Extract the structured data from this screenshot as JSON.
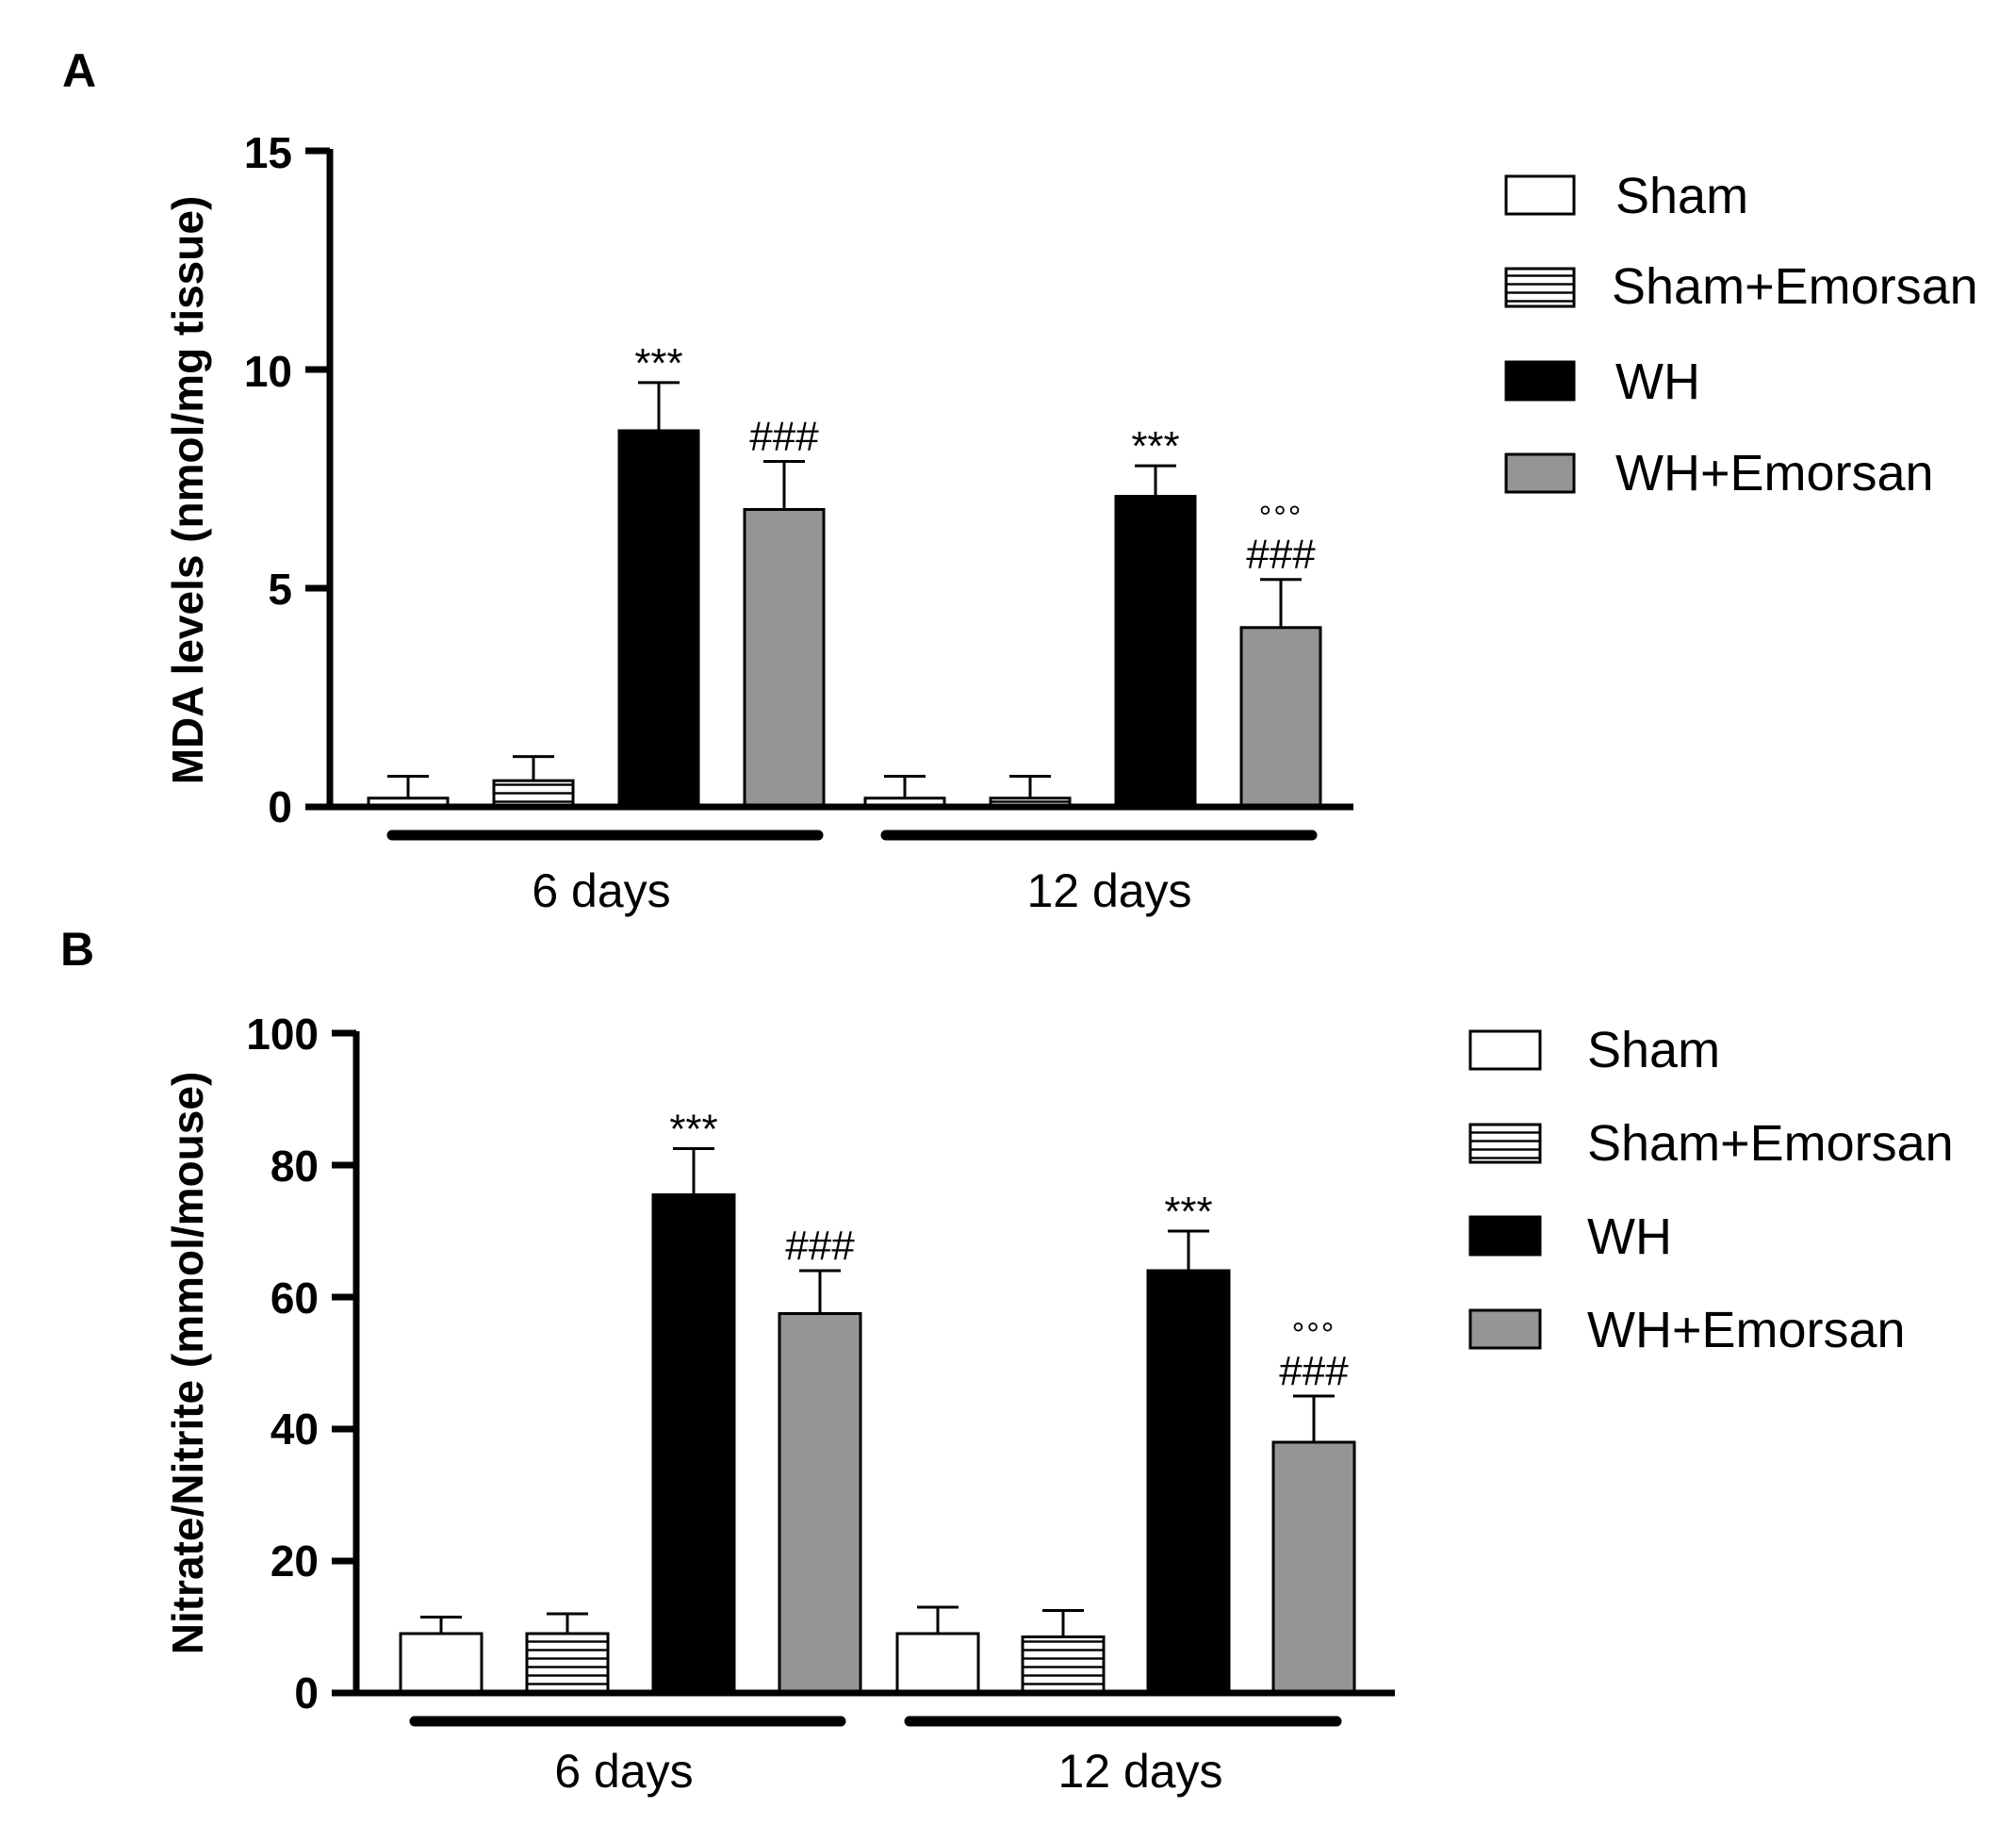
{
  "chart_data": [
    {
      "panel": "A",
      "type": "bar",
      "ylabel": "MDA levels (nmol/mg tissue)",
      "ylim": [
        0,
        15
      ],
      "yticks": [
        "0",
        "5",
        "10",
        "15"
      ],
      "groups": [
        "6 days",
        "12 days"
      ],
      "series": [
        {
          "name": "Sham",
          "fill": "#ffffff",
          "pattern": "none",
          "values": [
            0.2,
            0.2
          ],
          "errors": [
            0.5,
            0.5
          ],
          "sig_hash": [
            "",
            ""
          ],
          "sig_star": [
            "",
            ""
          ],
          "sig_ring": [
            "",
            ""
          ]
        },
        {
          "name": "Sham+Emorsan",
          "fill": "#ffffff",
          "pattern": "horizontal-stripes",
          "values": [
            0.6,
            0.2
          ],
          "errors": [
            0.55,
            0.5
          ],
          "sig_hash": [
            "",
            ""
          ],
          "sig_star": [
            "",
            ""
          ],
          "sig_ring": [
            "",
            ""
          ]
        },
        {
          "name": "WH",
          "fill": "#000000",
          "pattern": "none",
          "values": [
            8.6,
            7.1
          ],
          "errors": [
            1.1,
            0.7
          ],
          "sig_hash": [
            "",
            ""
          ],
          "sig_star": [
            "***",
            "***"
          ],
          "sig_ring": [
            "",
            ""
          ]
        },
        {
          "name": "WH+Emorsan",
          "fill": "#959595",
          "pattern": "none",
          "values": [
            6.8,
            4.1
          ],
          "errors": [
            1.1,
            1.1
          ],
          "sig_hash": [
            "###",
            "###"
          ],
          "sig_star": [
            "",
            ""
          ],
          "sig_ring": [
            "",
            "°°°"
          ]
        }
      ],
      "legend": [
        "Sham",
        "Sham+Emorsan",
        "WH",
        "WH+Emorsan"
      ],
      "legend_position": "right"
    },
    {
      "panel": "B",
      "type": "bar",
      "ylabel": "Nitrate/Nitrite (mmol/mouse)",
      "ylim": [
        0,
        100
      ],
      "yticks": [
        "0",
        "20",
        "40",
        "60",
        "80",
        "100"
      ],
      "groups": [
        "6 days",
        "12 days"
      ],
      "series": [
        {
          "name": "Sham",
          "fill": "#ffffff",
          "pattern": "none",
          "values": [
            9,
            9
          ],
          "errors": [
            2.5,
            4
          ],
          "sig_hash": [
            "",
            ""
          ],
          "sig_star": [
            "",
            ""
          ],
          "sig_ring": [
            "",
            ""
          ]
        },
        {
          "name": "Sham+Emorsan",
          "fill": "#ffffff",
          "pattern": "horizontal-stripes",
          "values": [
            9,
            8.5
          ],
          "errors": [
            3,
            4
          ],
          "sig_hash": [
            "",
            ""
          ],
          "sig_star": [
            "",
            ""
          ],
          "sig_ring": [
            "",
            ""
          ]
        },
        {
          "name": "WH",
          "fill": "#000000",
          "pattern": "none",
          "values": [
            75.5,
            64
          ],
          "errors": [
            7,
            6
          ],
          "sig_hash": [
            "",
            ""
          ],
          "sig_star": [
            "***",
            "***"
          ],
          "sig_ring": [
            "",
            ""
          ]
        },
        {
          "name": "WH+Emorsan",
          "fill": "#959595",
          "pattern": "none",
          "values": [
            57.5,
            38
          ],
          "errors": [
            6.5,
            7
          ],
          "sig_hash": [
            "###",
            "###"
          ],
          "sig_star": [
            "",
            ""
          ],
          "sig_ring": [
            "",
            "°°°"
          ]
        }
      ],
      "legend": [
        "Sham",
        "Sham+Emorsan",
        "WH",
        "WH+Emorsan"
      ],
      "legend_position": "right"
    }
  ]
}
